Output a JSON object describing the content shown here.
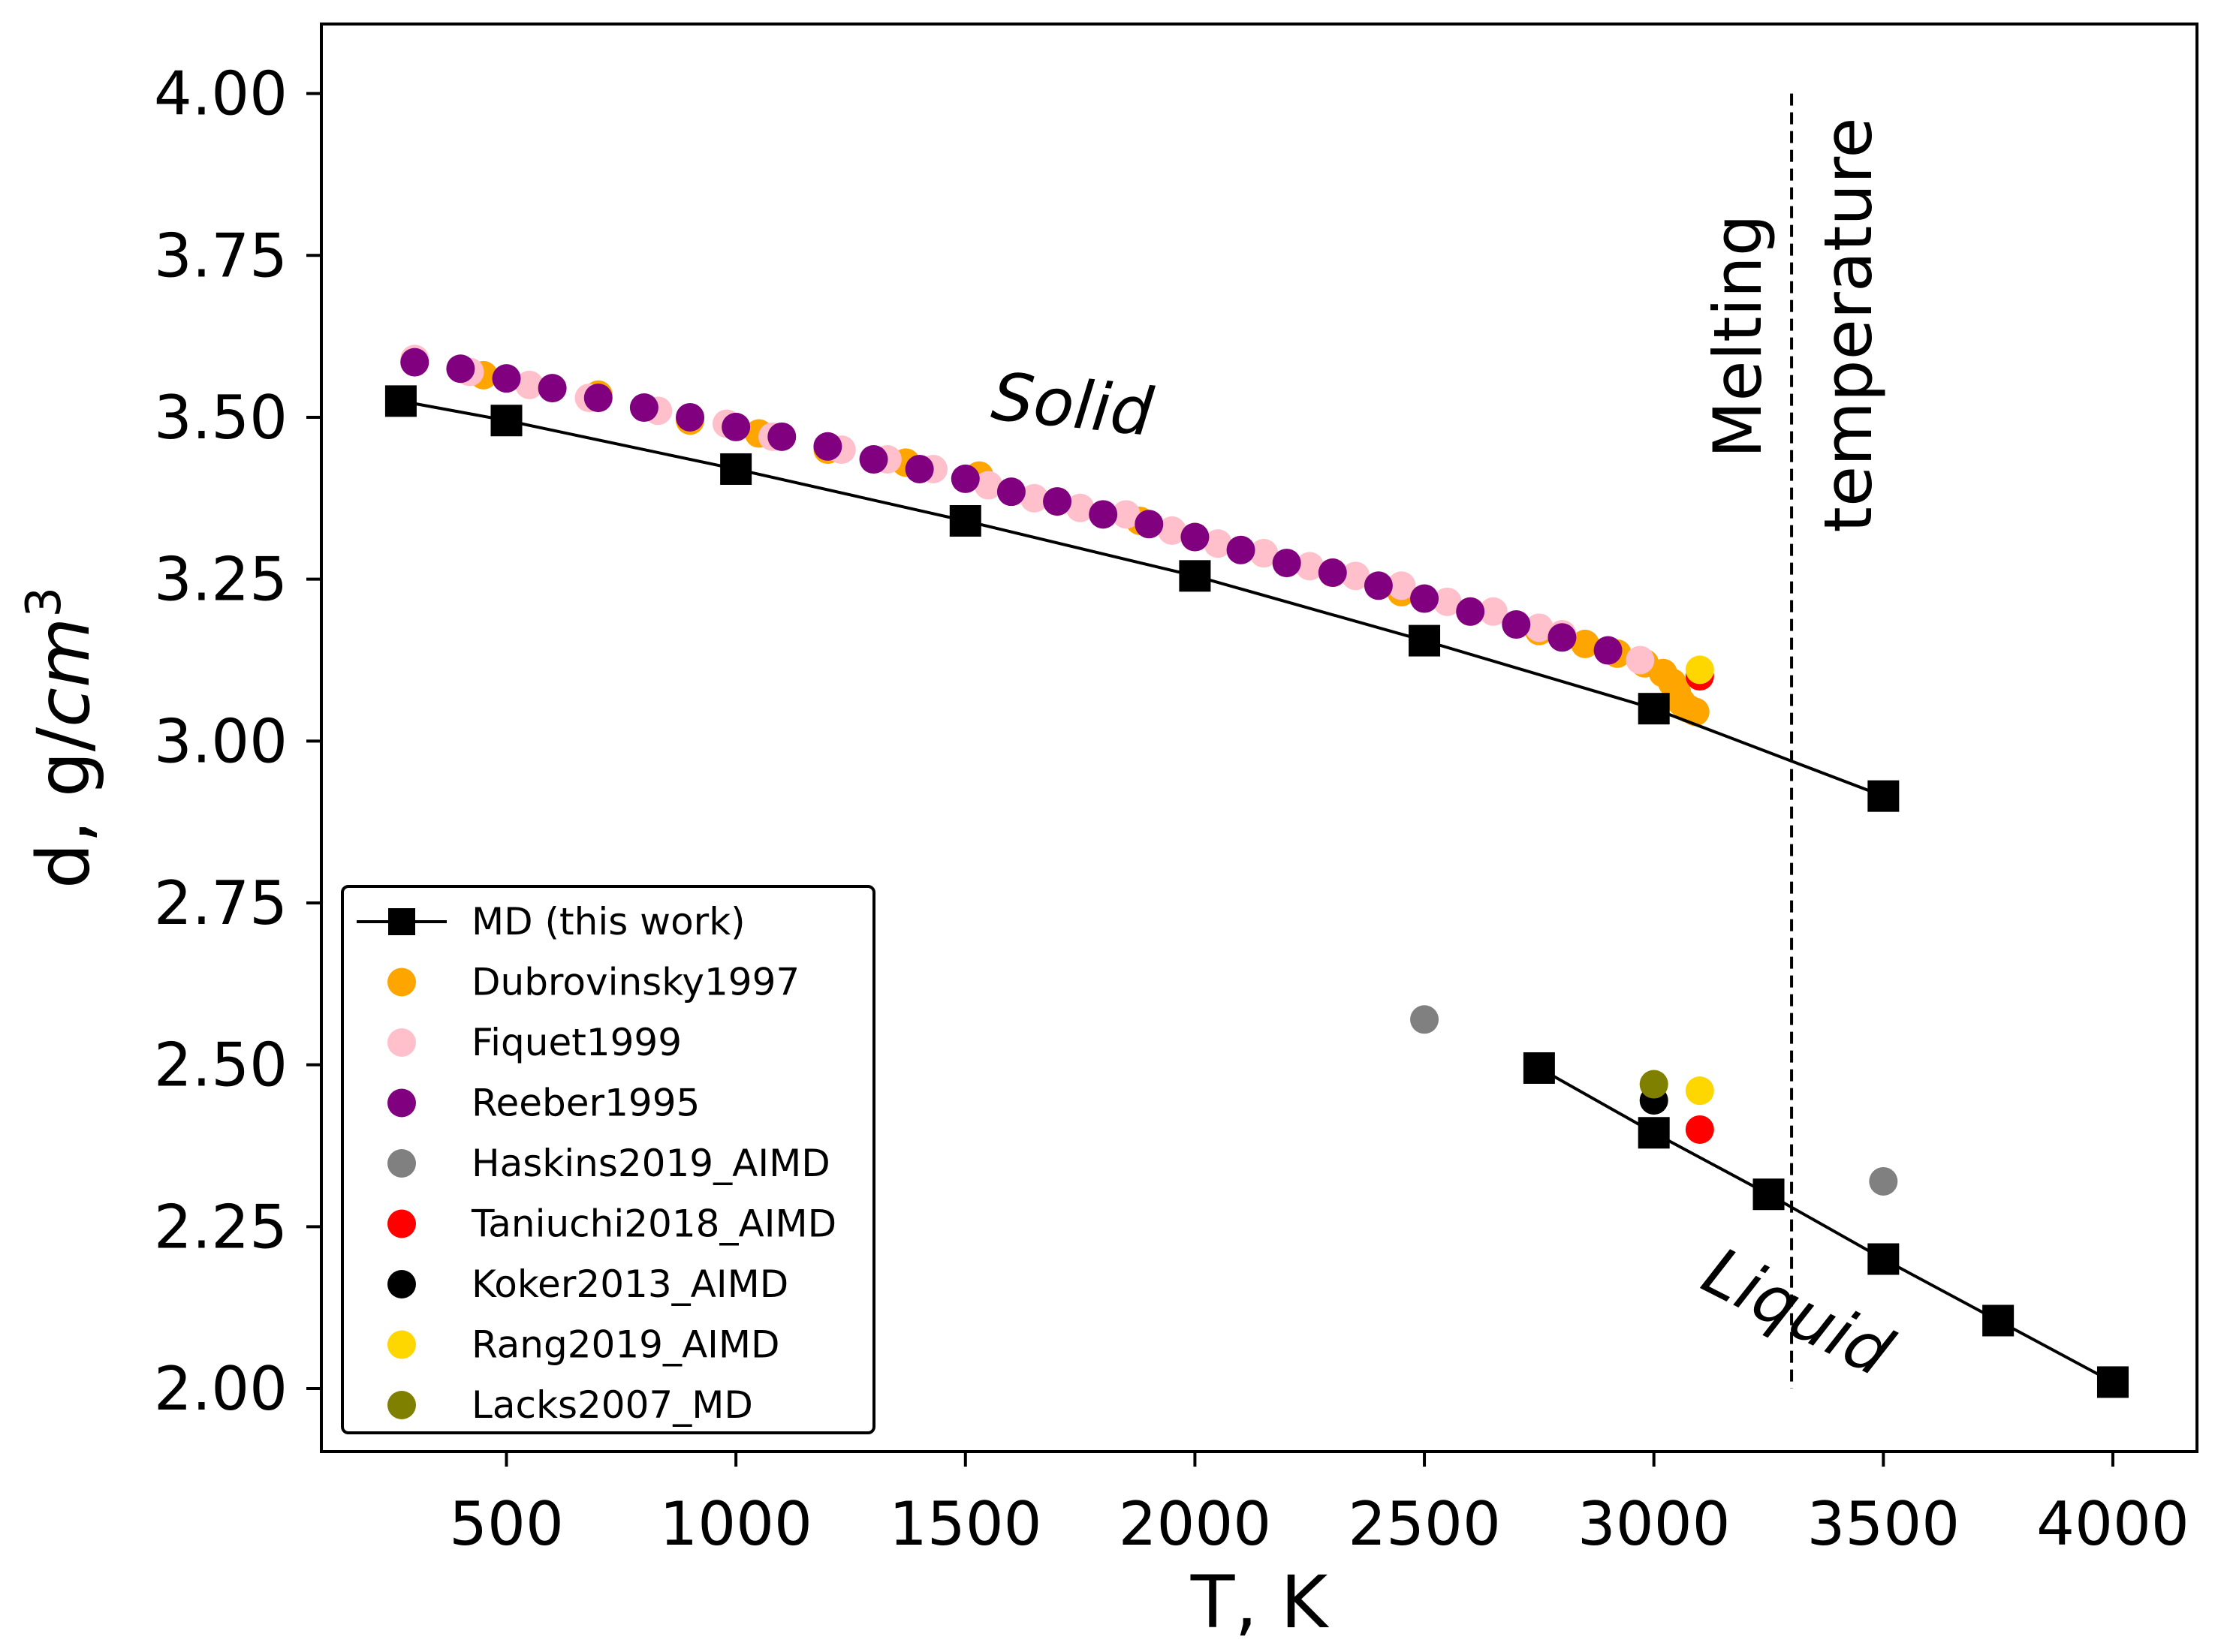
{
  "chart_data": {
    "type": "scatter",
    "xlabel": "T, K",
    "ylabel_main": "d, g/",
    "ylabel_unit": "cm",
    "ylabel_exp": "3",
    "xlim": [
      100,
      4180
    ],
    "ylim": [
      1.905,
      4.105
    ],
    "xticks": [
      {
        "value": 500,
        "label": "500"
      },
      {
        "value": 1000,
        "label": "1000"
      },
      {
        "value": 1500,
        "label": "1500"
      },
      {
        "value": 2000,
        "label": "2000"
      },
      {
        "value": 2500,
        "label": "2500"
      },
      {
        "value": 3000,
        "label": "3000"
      },
      {
        "value": 3500,
        "label": "3500"
      },
      {
        "value": 4000,
        "label": "4000"
      }
    ],
    "yticks": [
      {
        "value": 2.0,
        "label": "2.00"
      },
      {
        "value": 2.25,
        "label": "2.25"
      },
      {
        "value": 2.5,
        "label": "2.50"
      },
      {
        "value": 2.75,
        "label": "2.75"
      },
      {
        "value": 3.0,
        "label": "3.00"
      },
      {
        "value": 3.25,
        "label": "3.25"
      },
      {
        "value": 3.5,
        "label": "3.50"
      },
      {
        "value": 3.75,
        "label": "3.75"
      },
      {
        "value": 4.0,
        "label": "4.00"
      }
    ],
    "annotations": {
      "solid": "Solid",
      "liquid": "Liquid",
      "melting_line1": "Melting",
      "melting_line2": "temperature",
      "melting_T": 3300,
      "melting_range": [
        2.0,
        4.0
      ]
    },
    "series": [
      {
        "name": "Dubrovinsky1997",
        "kind": "scatter",
        "color": "#FFA500",
        "points": [
          [
            300,
            3.585
          ],
          [
            450,
            3.565
          ],
          [
            700,
            3.535
          ],
          [
            900,
            3.495
          ],
          [
            1050,
            3.475
          ],
          [
            1200,
            3.45
          ],
          [
            1370,
            3.43
          ],
          [
            1530,
            3.41
          ],
          [
            1700,
            3.37
          ],
          [
            1880,
            3.34
          ],
          [
            2000,
            3.315
          ],
          [
            2150,
            3.29
          ],
          [
            2300,
            3.26
          ],
          [
            2450,
            3.23
          ],
          [
            2600,
            3.2
          ],
          [
            2750,
            3.17
          ],
          [
            2850,
            3.15
          ],
          [
            2920,
            3.135
          ],
          [
            2980,
            3.12
          ],
          [
            3020,
            3.105
          ],
          [
            3040,
            3.09
          ],
          [
            3050,
            3.075
          ],
          [
            3060,
            3.06
          ],
          [
            3075,
            3.05
          ],
          [
            3090,
            3.045
          ]
        ]
      },
      {
        "name": "Fiquet1999",
        "kind": "scatter",
        "color": "#FFC0CB",
        "points": [
          [
            300,
            3.59
          ],
          [
            420,
            3.57
          ],
          [
            550,
            3.55
          ],
          [
            680,
            3.53
          ],
          [
            830,
            3.51
          ],
          [
            980,
            3.49
          ],
          [
            1080,
            3.47
          ],
          [
            1230,
            3.45
          ],
          [
            1330,
            3.435
          ],
          [
            1430,
            3.42
          ],
          [
            1550,
            3.395
          ],
          [
            1650,
            3.375
          ],
          [
            1750,
            3.36
          ],
          [
            1850,
            3.35
          ],
          [
            1950,
            3.325
          ],
          [
            2050,
            3.305
          ],
          [
            2150,
            3.29
          ],
          [
            2250,
            3.27
          ],
          [
            2350,
            3.255
          ],
          [
            2450,
            3.24
          ],
          [
            2550,
            3.215
          ],
          [
            2650,
            3.2
          ],
          [
            2750,
            3.175
          ],
          [
            2800,
            3.165
          ],
          [
            2970,
            3.125
          ]
        ]
      },
      {
        "name": "Reeber1995",
        "kind": "scatter",
        "color": "#800080",
        "points": [
          [
            300,
            3.585
          ],
          [
            400,
            3.575
          ],
          [
            500,
            3.56
          ],
          [
            600,
            3.545
          ],
          [
            700,
            3.53
          ],
          [
            800,
            3.515
          ],
          [
            900,
            3.5
          ],
          [
            1000,
            3.485
          ],
          [
            1100,
            3.47
          ],
          [
            1200,
            3.455
          ],
          [
            1300,
            3.435
          ],
          [
            1400,
            3.42
          ],
          [
            1500,
            3.405
          ],
          [
            1600,
            3.385
          ],
          [
            1700,
            3.37
          ],
          [
            1800,
            3.35
          ],
          [
            1900,
            3.335
          ],
          [
            2000,
            3.315
          ],
          [
            2100,
            3.295
          ],
          [
            2200,
            3.275
          ],
          [
            2300,
            3.26
          ],
          [
            2400,
            3.24
          ],
          [
            2500,
            3.22
          ],
          [
            2600,
            3.2
          ],
          [
            2700,
            3.18
          ],
          [
            2800,
            3.16
          ],
          [
            2900,
            3.14
          ]
        ]
      },
      {
        "name": "Haskins2019_AIMD",
        "kind": "scatter",
        "color": "#808080",
        "points": [
          [
            2500,
            2.57
          ],
          [
            3500,
            2.32
          ]
        ]
      },
      {
        "name": "Taniuchi2018_AIMD",
        "kind": "scatter",
        "color": "#FF0000",
        "points": [
          [
            3100,
            3.1
          ],
          [
            3100,
            2.4
          ]
        ]
      },
      {
        "name": "Koker2013_AIMD",
        "kind": "scatter",
        "color": "#000000",
        "points": [
          [
            3000,
            2.445
          ]
        ]
      },
      {
        "name": "Rang2019_AIMD",
        "kind": "scatter",
        "color": "#FFD700",
        "points": [
          [
            3100,
            3.11
          ],
          [
            3100,
            2.46
          ]
        ]
      },
      {
        "name": "Lacks2007_MD",
        "kind": "scatter",
        "color": "#808000",
        "points": [
          [
            3000,
            2.47
          ]
        ]
      },
      {
        "name": "MD (this work)",
        "kind": "line-square",
        "color": "#000000",
        "segments": [
          [
            [
              270,
              3.525
            ],
            [
              500,
              3.495
            ],
            [
              1000,
              3.42
            ],
            [
              1500,
              3.34
            ],
            [
              2000,
              3.255
            ],
            [
              2500,
              3.155
            ],
            [
              3000,
              3.05
            ],
            [
              3500,
              2.915
            ]
          ],
          [
            [
              2750,
              2.495
            ],
            [
              3000,
              2.395
            ],
            [
              3250,
              2.3
            ],
            [
              3500,
              2.2
            ],
            [
              3750,
              2.105
            ],
            [
              4000,
              2.01
            ]
          ]
        ]
      }
    ],
    "legend": {
      "position": "lower-left",
      "entries": [
        {
          "label": "MD (this work)",
          "color": "#000000",
          "marker": "square-line"
        },
        {
          "label": "Dubrovinsky1997",
          "color": "#FFA500",
          "marker": "circle"
        },
        {
          "label": "Fiquet1999",
          "color": "#FFC0CB",
          "marker": "circle"
        },
        {
          "label": "Reeber1995",
          "color": "#800080",
          "marker": "circle"
        },
        {
          "label": "Haskins2019_AIMD",
          "color": "#808080",
          "marker": "circle"
        },
        {
          "label": "Taniuchi2018_AIMD",
          "color": "#FF0000",
          "marker": "circle"
        },
        {
          "label": "Koker2013_AIMD",
          "color": "#000000",
          "marker": "circle"
        },
        {
          "label": "Rang2019_AIMD",
          "color": "#FFD700",
          "marker": "circle"
        },
        {
          "label": "Lacks2007_MD",
          "color": "#808000",
          "marker": "circle"
        }
      ]
    }
  }
}
